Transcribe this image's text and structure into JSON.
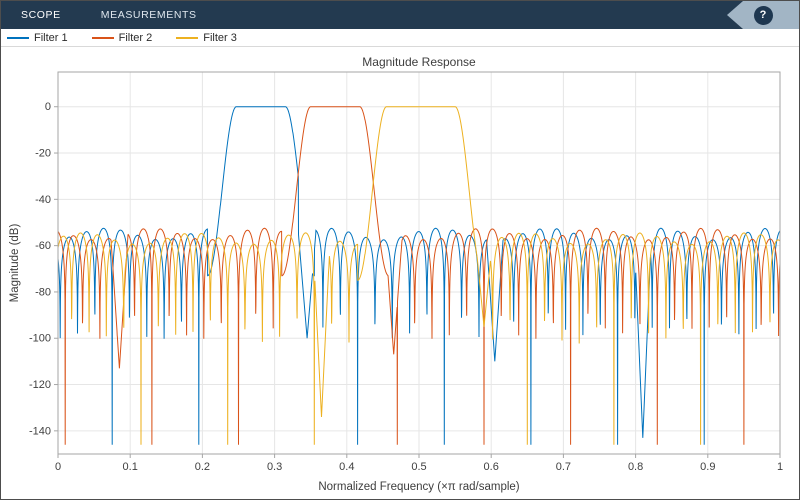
{
  "toolbar": {
    "tabs": [
      {
        "label": "SCOPE"
      },
      {
        "label": "MEASUREMENTS"
      }
    ],
    "help_label": "?"
  },
  "legend": {
    "position": "top-left-outside",
    "items": [
      {
        "label": "Filter 1",
        "color": "#0072BD"
      },
      {
        "label": "Filter 2",
        "color": "#D95319"
      },
      {
        "label": "Filter 3",
        "color": "#EDB120"
      }
    ]
  },
  "chart_data": {
    "type": "line",
    "title": "Magnitude Response",
    "xlabel": "Normalized Frequency (×π rad/sample)",
    "ylabel": "Magnitude (dB)",
    "xlim": [
      0,
      1
    ],
    "ylim": [
      -150,
      15
    ],
    "grid": true,
    "xticks": [
      0,
      0.1,
      0.2,
      0.3,
      0.4,
      0.5,
      0.6,
      0.7,
      0.8,
      0.9,
      1
    ],
    "xtick_labels": [
      "0",
      "0.1",
      "0.2",
      "0.3",
      "0.4",
      "0.5",
      "0.6",
      "0.7",
      "0.8",
      "0.9",
      "1"
    ],
    "yticks": [
      0,
      -20,
      -40,
      -60,
      -80,
      -100,
      -120,
      -140
    ],
    "ytick_labels": [
      "0",
      "-20",
      "-40",
      "-60",
      "-80",
      "-100",
      "-120",
      "-140"
    ],
    "series": [
      {
        "name": "Filter 1",
        "color": "#0072BD",
        "shape": "equiripple-bandpass",
        "passband": [
          0.247,
          0.315
        ],
        "passband_gain_db": 0,
        "transition": 0.04,
        "sidelobe_db": -55,
        "lobe_width": 0.024,
        "deep_nulls": [
          [
            0.345,
            -100
          ],
          [
            0.605,
            -110
          ],
          [
            0.81,
            -143
          ]
        ]
      },
      {
        "name": "Filter 2",
        "color": "#D95319",
        "shape": "equiripple-bandpass",
        "passband": [
          0.35,
          0.418
        ],
        "passband_gain_db": 0,
        "transition": 0.04,
        "sidelobe_db": -55,
        "lobe_width": 0.024,
        "deep_nulls": [
          [
            0.085,
            -113
          ],
          [
            0.465,
            -107
          ]
        ]
      },
      {
        "name": "Filter 3",
        "color": "#EDB120",
        "shape": "equiripple-bandpass",
        "passband": [
          0.455,
          0.55
        ],
        "passband_gain_db": 0,
        "transition": 0.04,
        "sidelobe_db": -57,
        "lobe_width": 0.024,
        "deep_nulls": [
          [
            0.365,
            -134
          ],
          [
            0.59,
            -95
          ]
        ]
      }
    ]
  }
}
